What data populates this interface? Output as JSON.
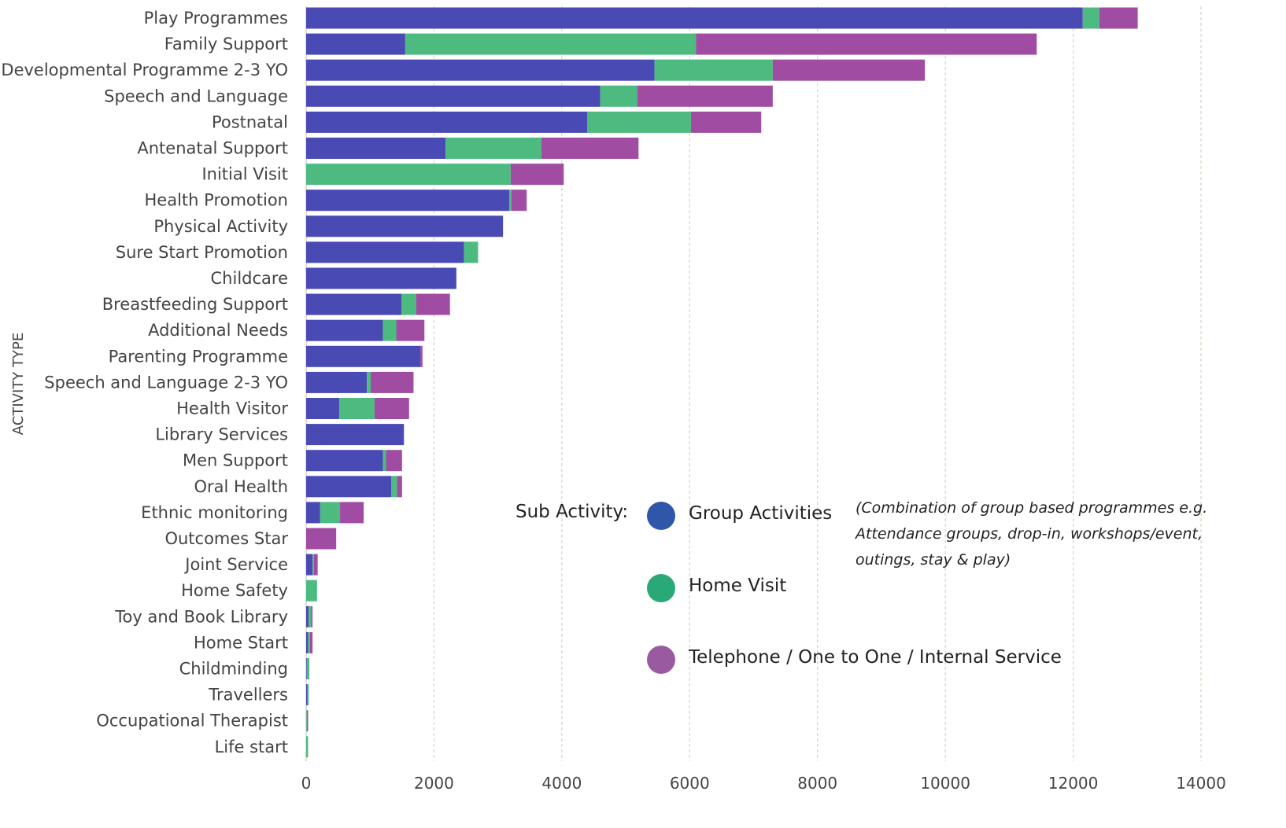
{
  "chart_data": {
    "type": "bar",
    "orientation": "horizontal",
    "stacked": true,
    "title": "",
    "xlabel": "",
    "ylabel": "ACTIVITY TYPE",
    "xlim": [
      0,
      14000
    ],
    "xticks": [
      0,
      2000,
      4000,
      6000,
      8000,
      10000,
      12000,
      14000
    ],
    "grid": true,
    "categories": [
      "Play Programmes",
      "Family Support",
      "Developmental Programme 2-3 YO",
      "Speech and Language",
      "Postnatal",
      "Antenatal Support",
      "Initial Visit",
      "Health Promotion",
      "Physical Activity",
      "Sure Start Promotion",
      "Childcare",
      "Breastfeeding Support",
      "Additional Needs",
      "Parenting Programme",
      "Speech and Language 2-3 YO",
      "Health Visitor",
      "Library Services",
      "Men Support",
      "Oral Health",
      "Ethnic monitoring",
      "Outcomes Star",
      "Joint Service",
      "Home Safety",
      "Toy and Book Library",
      "Home Start",
      "Childminding",
      "Travellers",
      "Occupational Therapist",
      "Life start"
    ],
    "series": [
      {
        "name": "Group Activities",
        "color": "#4a4ab5",
        "values": [
          12150,
          1550,
          5450,
          4600,
          4400,
          2180,
          0,
          3180,
          3080,
          2470,
          2350,
          1490,
          1200,
          1790,
          950,
          520,
          1530,
          1200,
          1330,
          220,
          0,
          100,
          0,
          40,
          30,
          10,
          20,
          0,
          0
        ]
      },
      {
        "name": "Home Visit",
        "color": "#4dbb80",
        "values": [
          260,
          4550,
          1850,
          580,
          1620,
          1500,
          3200,
          30,
          0,
          220,
          0,
          230,
          210,
          0,
          60,
          550,
          0,
          50,
          90,
          310,
          0,
          20,
          170,
          40,
          30,
          40,
          20,
          10,
          30
        ]
      },
      {
        "name": "Telephone / One to One / Internal Service",
        "color": "#a14ca3",
        "values": [
          600,
          5330,
          2380,
          2120,
          1100,
          1520,
          830,
          240,
          0,
          0,
          0,
          530,
          440,
          30,
          670,
          540,
          0,
          250,
          80,
          370,
          470,
          60,
          0,
          20,
          40,
          0,
          0,
          20,
          0
        ]
      }
    ],
    "legend": {
      "title": "Sub Activity:",
      "position": "bottom-right",
      "note": "(Combination of group based programmes e.g. Attendance groups, drop-in, workshops/event, outings, stay & play)",
      "dot_colors": [
        "#2f56a8",
        "#2aa978",
        "#9a5aa0"
      ]
    }
  }
}
